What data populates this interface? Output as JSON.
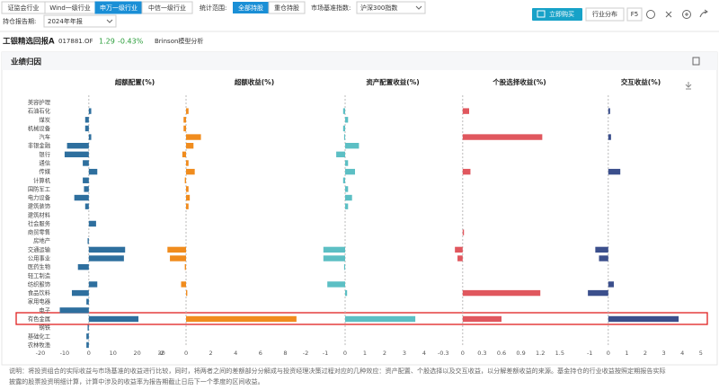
{
  "toolbar": {
    "industry_tabs": [
      "证监会行业",
      "Wind一级行业",
      "申万一级行业",
      "中信一级行业"
    ],
    "scope_label": "统计范围:",
    "scope_tabs": [
      "全部持股",
      "重仓持股"
    ],
    "benchmark_label": "市场基准指数:",
    "benchmark": "沪深300指数",
    "buy_button": "立即购买",
    "industry_dist": "行业分布",
    "refresh": "F5",
    "period_label": "持仓报告期:",
    "period": "2024年年报"
  },
  "fund": {
    "name": "工银精选回报A",
    "code": "017881.OF",
    "nav": "1.29",
    "change": "-0.43%",
    "model": "Brinson模型分析"
  },
  "section_title": "业绩归因",
  "chart_data": [
    {
      "type": "bar",
      "orientation": "horizontal",
      "title": "超额配置(%)",
      "color": "#2e6f9e",
      "categories": [
        "美容护理",
        "石油石化",
        "煤炭",
        "机械设备",
        "汽车",
        "非银金融",
        "银行",
        "通信",
        "传媒",
        "计算机",
        "国防军工",
        "电力设备",
        "建筑装饰",
        "建筑材料",
        "社会服务",
        "商贸零售",
        "房地产",
        "交通运输",
        "公用事业",
        "医药生物",
        "轻工制造",
        "纺织服饰",
        "食品饮料",
        "家用电器",
        "电子",
        "有色金属",
        "钢铁",
        "基础化工",
        "农林牧渔"
      ],
      "values": [
        0,
        1,
        -1.5,
        -1.5,
        1,
        -9,
        -10,
        -2.5,
        3.5,
        -2.5,
        -2,
        -6,
        -1.5,
        0,
        3,
        0,
        -0.5,
        15,
        14.5,
        -4.5,
        0,
        3.5,
        -7,
        -1,
        -12,
        20.5,
        -0.5,
        -1,
        -1
      ],
      "xlim": [
        -25,
        32
      ],
      "xticks": [
        -20,
        -10,
        0,
        10,
        20,
        30
      ]
    },
    {
      "type": "bar",
      "orientation": "horizontal",
      "title": "超额收益(%)",
      "color": "#f08c1e",
      "values": [
        0,
        0.2,
        -0.2,
        -0.2,
        1.2,
        0.6,
        -0.3,
        0.2,
        0.7,
        -0.1,
        0.2,
        0.3,
        0.2,
        0,
        0,
        0,
        0,
        -1.5,
        -1.3,
        -0.1,
        0,
        -0.4,
        0.1,
        0,
        0,
        8.9,
        0,
        0,
        0
      ],
      "xlim": [
        -2.5,
        9.2
      ],
      "xticks": [
        -2,
        0,
        2,
        4,
        6,
        8
      ]
    },
    {
      "type": "bar",
      "orientation": "horizontal",
      "title": "资产配置收益(%)",
      "color": "#5cbfc4",
      "values": [
        0,
        -0.1,
        0.15,
        -0.1,
        -0.05,
        0.7,
        -0.45,
        0.15,
        0.5,
        -0.1,
        0.15,
        0.35,
        0.15,
        0,
        0,
        0,
        0,
        -1.1,
        -1.1,
        -0.05,
        0,
        -0.9,
        0.1,
        0,
        0,
        3.55,
        0,
        0,
        0
      ],
      "xlim": [
        -2.3,
        4.3
      ],
      "xticks": [
        -2,
        -1,
        0,
        1,
        2,
        3,
        4
      ]
    },
    {
      "type": "bar",
      "orientation": "horizontal",
      "title": "个股选择收益(%)",
      "color": "#e0575e",
      "values": [
        0,
        0.1,
        0,
        0,
        1.23,
        0,
        0,
        0,
        0.12,
        0,
        0,
        0,
        0,
        0,
        0,
        0.02,
        0,
        -0.12,
        -0.08,
        0,
        0,
        0,
        1.2,
        0,
        0,
        0.6,
        0,
        0,
        0
      ],
      "xlim": [
        -0.4,
        1.6
      ],
      "xticks": [
        -0.3,
        0,
        0.3,
        0.6,
        0.9,
        1.2,
        1.5
      ]
    },
    {
      "type": "bar",
      "orientation": "horizontal",
      "title": "交互收益(%)",
      "color": "#3b4f8c",
      "values": [
        0,
        0.1,
        0,
        0,
        0.15,
        0,
        0,
        0,
        0.65,
        0,
        0,
        0,
        0,
        0,
        0,
        0,
        0,
        -0.7,
        -0.5,
        0,
        0,
        0.3,
        -1.1,
        0,
        0,
        3.8,
        0,
        0,
        0
      ],
      "xlim": [
        -1.3,
        5.3
      ],
      "xticks": [
        -1,
        0,
        1,
        2,
        3,
        4,
        5
      ]
    }
  ],
  "note": [
    "说明：将投资组合的实际收益与市场基准的收益进行比较，同时，将两者之间的差额部分分解成与投资经理决策过程对应的几种效应：资产配置、个股选择以及交互收益，以分解差额收益的来源。基金持仓的行业收益按照定期报告实际",
    "披露的股票投资明细计算，计算中涉及的收益率为报告期截止日后下一个季度的区间收益。"
  ]
}
